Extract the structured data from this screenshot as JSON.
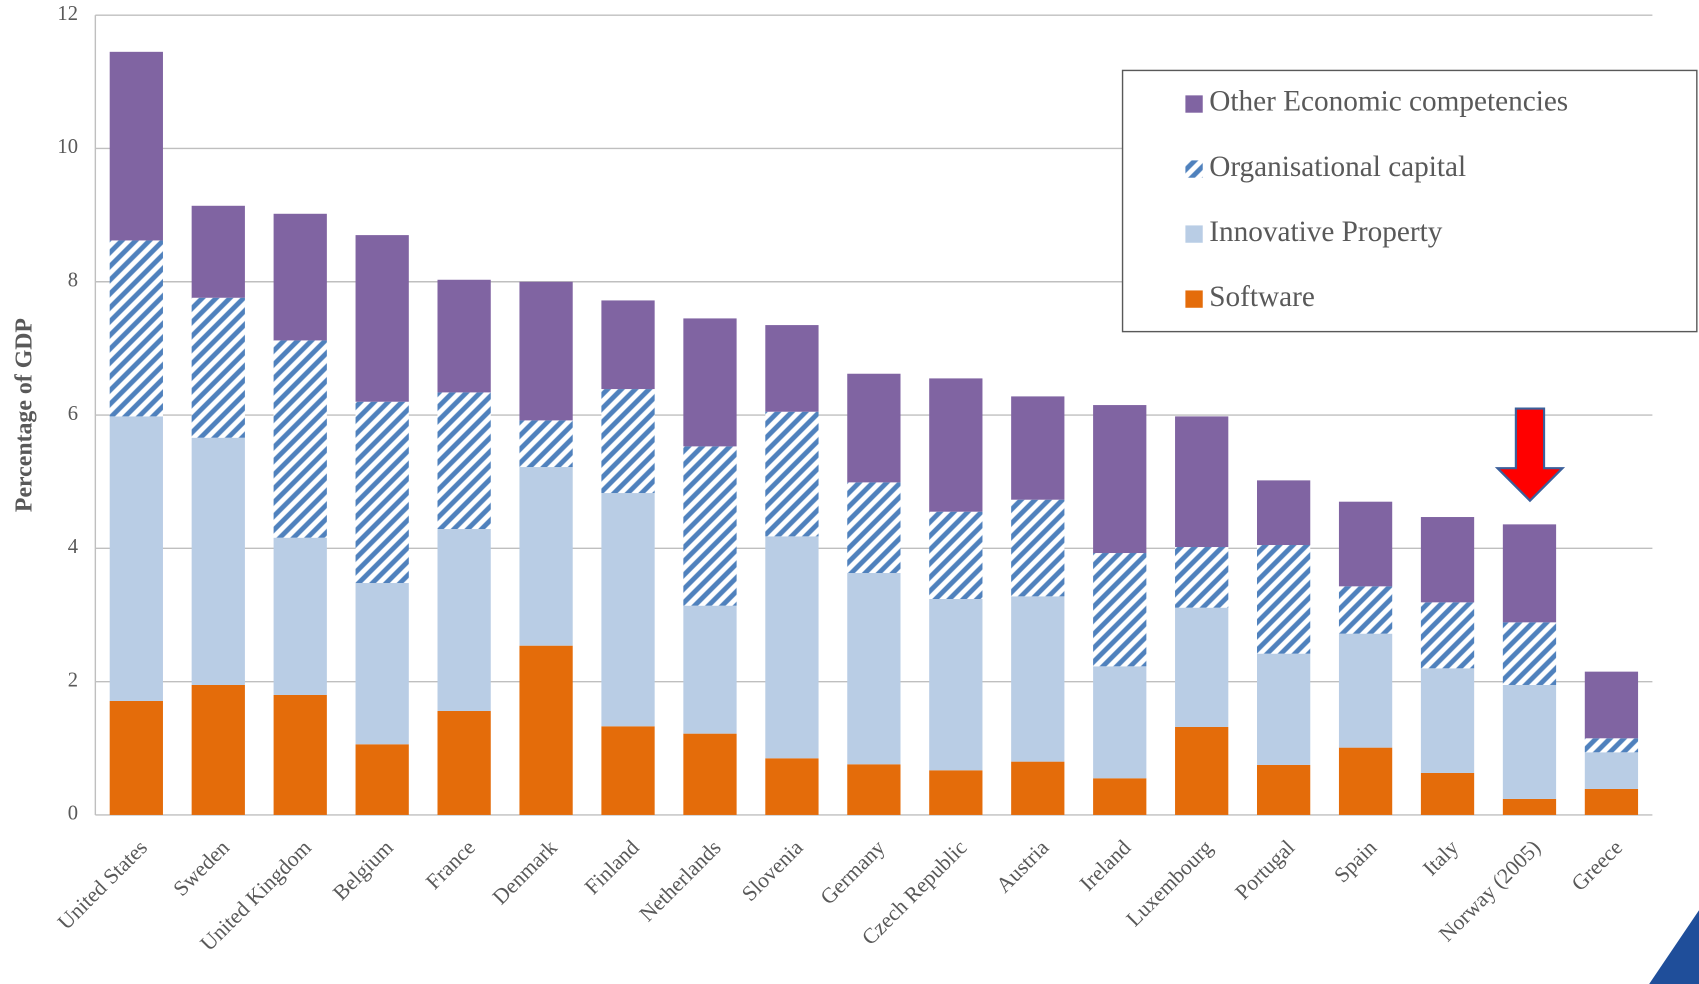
{
  "chart_data": {
    "type": "stacked_bar",
    "y_label": "Percentage of GDP",
    "categories": [
      "United States",
      "Sweden",
      "United Kingdom",
      "Belgium",
      "France",
      "Denmark",
      "Finland",
      "Netherlands",
      "Slovenia",
      "Germany",
      "Czech Republic",
      "Austria",
      "Ireland",
      "Luxembourg",
      "Portugal",
      "Spain",
      "Italy",
      "Norway (2005)",
      "Greece"
    ],
    "series": [
      {
        "name": "Software",
        "color": "#e46c0a",
        "values": [
          1.71,
          1.95,
          1.8,
          1.06,
          1.56,
          2.54,
          1.33,
          1.22,
          0.85,
          0.76,
          0.67,
          0.8,
          0.55,
          1.32,
          0.75,
          1.01,
          0.63,
          0.24,
          0.39
        ]
      },
      {
        "name": "Innovative Property",
        "color": "#b9cde5",
        "values": [
          4.27,
          3.71,
          2.36,
          2.42,
          2.73,
          2.68,
          3.5,
          1.92,
          3.33,
          2.87,
          2.57,
          2.48,
          1.68,
          1.79,
          1.67,
          1.71,
          1.57,
          1.71,
          0.55
        ]
      },
      {
        "name": "Organisational capital",
        "color": "#4f81bd",
        "pattern": "hatch",
        "values": [
          2.64,
          2.1,
          2.96,
          2.72,
          2.05,
          0.7,
          1.56,
          2.39,
          1.87,
          1.36,
          1.31,
          1.45,
          1.7,
          0.91,
          1.63,
          0.71,
          0.99,
          0.94,
          0.21
        ]
      },
      {
        "name": "Other Economic competencies",
        "color": "#8064a2",
        "values": [
          2.83,
          1.38,
          1.9,
          2.5,
          1.69,
          2.08,
          1.33,
          1.92,
          1.3,
          1.63,
          2.0,
          1.55,
          2.22,
          1.96,
          0.97,
          1.27,
          1.28,
          1.47,
          1.0
        ]
      }
    ],
    "ylim": [
      0,
      12
    ],
    "yticks": [
      0,
      2,
      4,
      6,
      8,
      10,
      12
    ],
    "grid": true,
    "legend": "upper right"
  }
}
